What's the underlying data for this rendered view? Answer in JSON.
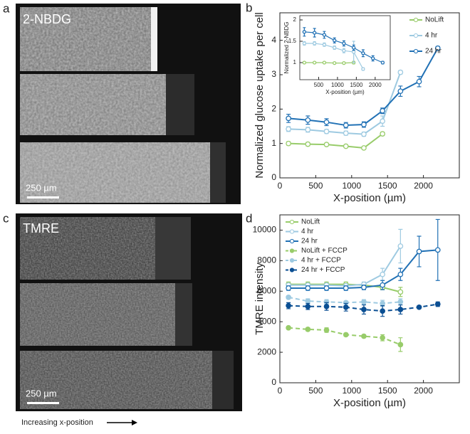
{
  "panels": {
    "a": {
      "letter": "a",
      "label": "2-NBDG",
      "scale": "250 µm"
    },
    "c": {
      "letter": "c",
      "label": "TMRE",
      "scale": "250 µm"
    },
    "b": {
      "letter": "b"
    },
    "d": {
      "letter": "d"
    },
    "arrow_label": "Increasing x-position"
  },
  "chart_data": [
    {
      "type": "line",
      "xlabel": "X-position (µm)",
      "ylabel": "Normalized glucose uptake per cell",
      "xlim": [
        0,
        2500
      ],
      "xticks": [
        0,
        500,
        1000,
        1500,
        2000
      ],
      "ylim": [
        0,
        4.8
      ],
      "yticks": [
        0,
        1,
        2,
        3,
        4
      ],
      "legend": "upper right",
      "series": [
        {
          "name": "NoLift",
          "color": "#98cc6a",
          "x": [
            120,
            390,
            650,
            920,
            1170,
            1430
          ],
          "values": [
            1.0,
            0.98,
            0.97,
            0.92,
            0.87,
            1.28
          ],
          "errors": [
            0.05,
            0.05,
            0.04,
            0.04,
            0.04,
            0.05
          ]
        },
        {
          "name": "4 hr",
          "color": "#9ecae1",
          "x": [
            120,
            390,
            650,
            920,
            1170,
            1430,
            1680
          ],
          "values": [
            1.42,
            1.4,
            1.35,
            1.3,
            1.27,
            1.65,
            3.07
          ],
          "errors": [
            0.07,
            0.07,
            0.06,
            0.06,
            0.06,
            0.15,
            0.05
          ]
        },
        {
          "name": "24 hr",
          "color": "#2171b5",
          "x": [
            120,
            390,
            650,
            920,
            1170,
            1430,
            1680,
            1940,
            2200
          ],
          "values": [
            1.73,
            1.68,
            1.62,
            1.53,
            1.55,
            1.95,
            2.52,
            2.8,
            3.77
          ],
          "errors": [
            0.12,
            0.12,
            0.1,
            0.08,
            0.08,
            0.08,
            0.15,
            0.15,
            0.05
          ]
        }
      ]
    },
    {
      "type": "line",
      "xlabel": "X-position (µm)",
      "ylabel": "Normalized 2-NBDG",
      "xlim": [
        0,
        2400
      ],
      "xticks": [
        500,
        1000,
        1500,
        2000
      ],
      "ylim": [
        0.6,
        2.1
      ],
      "yticks": [
        1,
        1.5,
        2
      ],
      "series": [
        {
          "name": "NoLift",
          "color": "#98cc6a",
          "x": [
            120,
            390,
            650,
            920,
            1170,
            1430
          ],
          "values": [
            1.0,
            1.0,
            1.0,
            0.99,
            0.99,
            1.0
          ],
          "errors": [
            0.02,
            0.02,
            0.02,
            0.02,
            0.02,
            0.03
          ]
        },
        {
          "name": "4 hr",
          "color": "#9ecae1",
          "x": [
            120,
            390,
            650,
            920,
            1170,
            1430,
            1680
          ],
          "values": [
            1.45,
            1.45,
            1.42,
            1.35,
            1.28,
            1.25,
            0.85
          ],
          "errors": [
            0.04,
            0.04,
            0.04,
            0.04,
            0.05,
            0.25,
            0.03
          ]
        },
        {
          "name": "24 hr",
          "color": "#2171b5",
          "x": [
            120,
            390,
            650,
            920,
            1170,
            1430,
            1680,
            1940,
            2200
          ],
          "values": [
            1.72,
            1.7,
            1.65,
            1.52,
            1.45,
            1.35,
            1.22,
            1.1,
            1.0
          ],
          "errors": [
            0.1,
            0.1,
            0.08,
            0.06,
            0.06,
            0.06,
            0.08,
            0.06,
            0.03
          ]
        }
      ]
    },
    {
      "type": "line",
      "xlabel": "X-position (µm)",
      "ylabel": "TMRE intensity",
      "xlim": [
        0,
        2500
      ],
      "xticks": [
        0,
        500,
        1000,
        1500,
        2000
      ],
      "ylim": [
        0,
        11000
      ],
      "yticks": [
        0,
        2000,
        4000,
        6000,
        8000,
        10000
      ],
      "legend": "upper left",
      "series": [
        {
          "name": "NoLift",
          "color": "#98cc6a",
          "x": [
            120,
            390,
            650,
            920,
            1170,
            1430,
            1680
          ],
          "values": [
            6450,
            6450,
            6450,
            6450,
            6400,
            6250,
            5950
          ],
          "errors": [
            150,
            150,
            150,
            150,
            150,
            150,
            300
          ]
        },
        {
          "name": "4 hr",
          "color": "#9ecae1",
          "x": [
            120,
            390,
            650,
            920,
            1170,
            1430,
            1680
          ],
          "values": [
            6400,
            6400,
            6400,
            6350,
            6450,
            7100,
            8950
          ],
          "errors": [
            100,
            100,
            100,
            100,
            150,
            400,
            1100
          ]
        },
        {
          "name": "24 hr",
          "color": "#2171b5",
          "x": [
            120,
            390,
            650,
            920,
            1170,
            1430,
            1680,
            1940,
            2200
          ],
          "values": [
            6200,
            6200,
            6200,
            6200,
            6250,
            6400,
            7100,
            8600,
            8700
          ],
          "errors": [
            150,
            150,
            150,
            150,
            150,
            300,
            400,
            1000,
            2000
          ]
        },
        {
          "name": "NoLift + FCCP",
          "color": "#98cc6a",
          "dashed": true,
          "x": [
            120,
            390,
            650,
            920,
            1170,
            1430,
            1680
          ],
          "values": [
            3600,
            3500,
            3450,
            3150,
            3050,
            2950,
            2500
          ],
          "errors": [
            100,
            100,
            150,
            100,
            100,
            200,
            450
          ]
        },
        {
          "name": "4 hr + FCCP",
          "color": "#9ecae1",
          "dashed": true,
          "x": [
            120,
            390,
            650,
            920,
            1170,
            1430,
            1680
          ],
          "values": [
            5600,
            5350,
            5300,
            5250,
            5300,
            5200,
            5300
          ],
          "errors": [
            100,
            150,
            150,
            100,
            150,
            200,
            200
          ]
        },
        {
          "name": "24 hr + FCCP",
          "color": "#0b4f93",
          "dashed": true,
          "x": [
            120,
            390,
            650,
            920,
            1170,
            1430,
            1680,
            1940,
            2200
          ],
          "values": [
            5050,
            5000,
            5000,
            4950,
            4800,
            4700,
            4800,
            4950,
            5150
          ],
          "errors": [
            200,
            200,
            250,
            250,
            300,
            350,
            300,
            100,
            150
          ]
        }
      ]
    }
  ]
}
